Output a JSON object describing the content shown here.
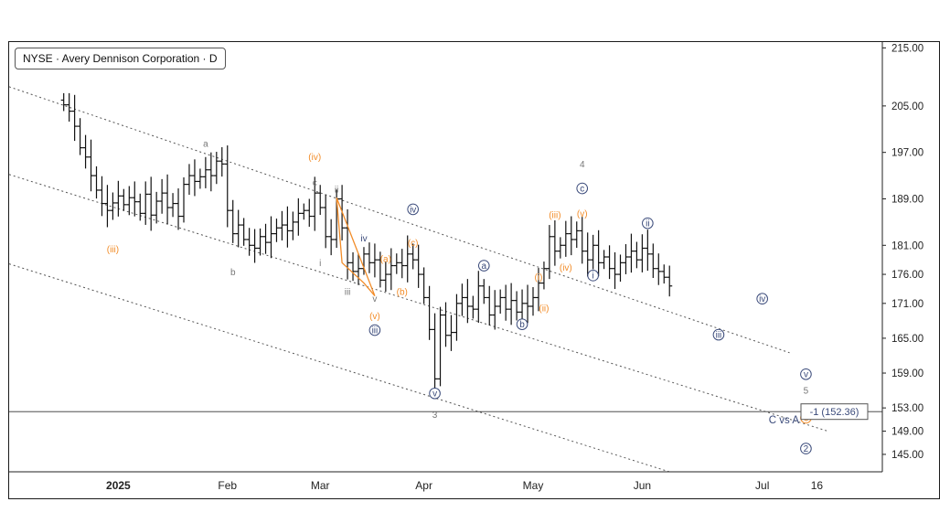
{
  "header": {
    "symbol_label": "NYSE · Avery Dennison Corporation · D"
  },
  "colors": {
    "candle": "#111111",
    "orange": "#f28c28",
    "navy": "#3a4a7a",
    "grey": "#777777",
    "channel": "#555555"
  },
  "chart_data": {
    "type": "ohlc",
    "title": "NYSE · Avery Dennison Corporation · D",
    "xlabel": "",
    "ylabel": "",
    "ylim": [
      142,
      216
    ],
    "y_ticks": [
      215,
      205,
      197,
      189,
      181,
      176,
      171,
      165,
      159,
      153,
      149,
      145
    ],
    "y_tick_labels": [
      "215.00",
      "205.00",
      "197.00",
      "189.00",
      "181.00",
      "176.00",
      "171.00",
      "165.00",
      "159.00",
      "153.00",
      "149.00",
      "145.00"
    ],
    "x_ticks": [
      "2025",
      "Feb",
      "Mar",
      "Apr",
      "May",
      "Jun",
      "Jul",
      "16"
    ],
    "x_tick_index": [
      10,
      30,
      47,
      66,
      86,
      106,
      128,
      138
    ],
    "x_range": [
      -10,
      150
    ],
    "series": [
      {
        "closes": [
          205.2,
          204.1,
          201.5,
          197.8,
          196.2,
          193.0,
          190.5,
          188.2,
          187.0,
          188.3,
          189.5,
          188.0,
          189.2,
          188.5,
          186.5,
          189.8,
          186.2,
          188.6,
          190.0,
          187.5,
          188.2,
          186.0,
          191.5,
          193.0,
          192.0,
          192.8,
          194.0,
          193.0,
          195.5,
          195.0,
          187.0,
          183.0,
          184.5,
          182.0,
          181.0,
          180.5,
          182.5,
          181.5,
          183.0,
          184.0,
          184.5,
          183.5,
          185.0,
          186.5,
          187.0,
          186.0,
          190.0,
          187.5,
          182.5,
          182.0,
          189.0,
          184.0,
          178.0,
          176.5,
          177.0,
          179.5,
          178.0,
          178.5,
          175.0,
          176.0,
          177.5,
          178.0,
          177.5,
          179.5,
          178.5,
          176.0,
          172.0,
          166.5,
          158.0,
          169.0,
          165.5,
          166.0,
          171.0,
          172.0,
          170.5,
          170.0,
          174.0,
          172.0,
          169.0,
          170.5,
          172.0,
          170.0,
          171.5,
          169.5,
          171.0,
          170.5,
          172.0,
          174.5,
          177.0,
          182.5,
          180.0,
          181.0,
          183.0,
          182.0,
          183.5,
          180.0,
          178.5,
          181.0,
          178.0,
          179.0,
          177.0,
          176.0,
          178.0,
          179.0,
          180.0,
          178.5,
          180.5,
          179.5,
          177.0,
          176.5,
          175.5,
          174.0
        ]
      }
    ],
    "channel_lines": [
      {
        "from": [
          -10,
          208.3
        ],
        "to": [
          133,
          162.5
        ]
      },
      {
        "from": [
          -10,
          193.2
        ],
        "to": [
          140,
          149.0
        ]
      },
      {
        "from": [
          -10,
          177.8
        ],
        "to": [
          111,
          142.0
        ]
      }
    ],
    "horizontal_line": 152.36,
    "target_label": "-1 (152.36)",
    "annotation_label": "C vs A",
    "wave_labels": [
      {
        "text": "(iii)",
        "x": 9,
        "y": 180.3,
        "color": "orange"
      },
      {
        "text": "a",
        "x": 26,
        "y": 198.5,
        "color": "grey"
      },
      {
        "text": "b",
        "x": 31,
        "y": 176.4,
        "color": "grey"
      },
      {
        "text": "(iv)",
        "x": 46,
        "y": 196.2,
        "color": "orange"
      },
      {
        "text": "c",
        "x": 46,
        "y": 191.8,
        "color": "grey"
      },
      {
        "text": "ii",
        "x": 50,
        "y": 190.6,
        "color": "grey"
      },
      {
        "text": "iv",
        "x": 55,
        "y": 182.2,
        "color": "navy"
      },
      {
        "text": "iv",
        "x": 64,
        "y": 187.2,
        "color": "navy",
        "circle": true
      },
      {
        "text": "i",
        "x": 47,
        "y": 178.0,
        "color": "grey"
      },
      {
        "text": "iii",
        "x": 52,
        "y": 173.0,
        "color": "grey"
      },
      {
        "text": "v",
        "x": 57,
        "y": 171.8,
        "color": "grey"
      },
      {
        "text": "(a)",
        "x": 59,
        "y": 178.7,
        "color": "orange"
      },
      {
        "text": "(b)",
        "x": 62,
        "y": 173.0,
        "color": "orange"
      },
      {
        "text": "(c)",
        "x": 64,
        "y": 181.4,
        "color": "orange"
      },
      {
        "text": "(v)",
        "x": 57,
        "y": 168.8,
        "color": "orange"
      },
      {
        "text": "iii",
        "x": 57,
        "y": 166.4,
        "color": "navy",
        "circle": true
      },
      {
        "text": "v",
        "x": 68,
        "y": 155.5,
        "color": "navy",
        "circle": true
      },
      {
        "text": "3",
        "x": 68,
        "y": 151.8,
        "color": "grey"
      },
      {
        "text": "a",
        "x": 77,
        "y": 177.5,
        "color": "navy",
        "circle": true
      },
      {
        "text": "b",
        "x": 84,
        "y": 167.4,
        "color": "navy",
        "circle": true
      },
      {
        "text": "(i)",
        "x": 87,
        "y": 175.5,
        "color": "orange"
      },
      {
        "text": "(ii)",
        "x": 88,
        "y": 170.2,
        "color": "orange"
      },
      {
        "text": "(iii)",
        "x": 90,
        "y": 186.2,
        "color": "orange"
      },
      {
        "text": "(iv)",
        "x": 92,
        "y": 177.2,
        "color": "orange"
      },
      {
        "text": "(v)",
        "x": 95,
        "y": 186.5,
        "color": "orange"
      },
      {
        "text": "4",
        "x": 95,
        "y": 195.0,
        "color": "grey"
      },
      {
        "text": "c",
        "x": 95,
        "y": 190.8,
        "color": "navy",
        "circle": true
      },
      {
        "text": "i",
        "x": 97,
        "y": 175.8,
        "color": "navy",
        "circle": true
      },
      {
        "text": "ii",
        "x": 107,
        "y": 184.8,
        "color": "navy",
        "circle": true
      },
      {
        "text": "iii",
        "x": 120,
        "y": 165.6,
        "color": "navy",
        "circle": true
      },
      {
        "text": "iv",
        "x": 128,
        "y": 171.8,
        "color": "navy",
        "circle": true
      },
      {
        "text": "v",
        "x": 136,
        "y": 158.8,
        "color": "navy",
        "circle": true
      },
      {
        "text": "5",
        "x": 136,
        "y": 156.0,
        "color": "grey"
      },
      {
        "text": "c",
        "x": 136,
        "y": 151.3,
        "color": "orange",
        "circle": true
      },
      {
        "text": "2",
        "x": 136,
        "y": 146.0,
        "color": "navy",
        "circle": true
      }
    ]
  }
}
